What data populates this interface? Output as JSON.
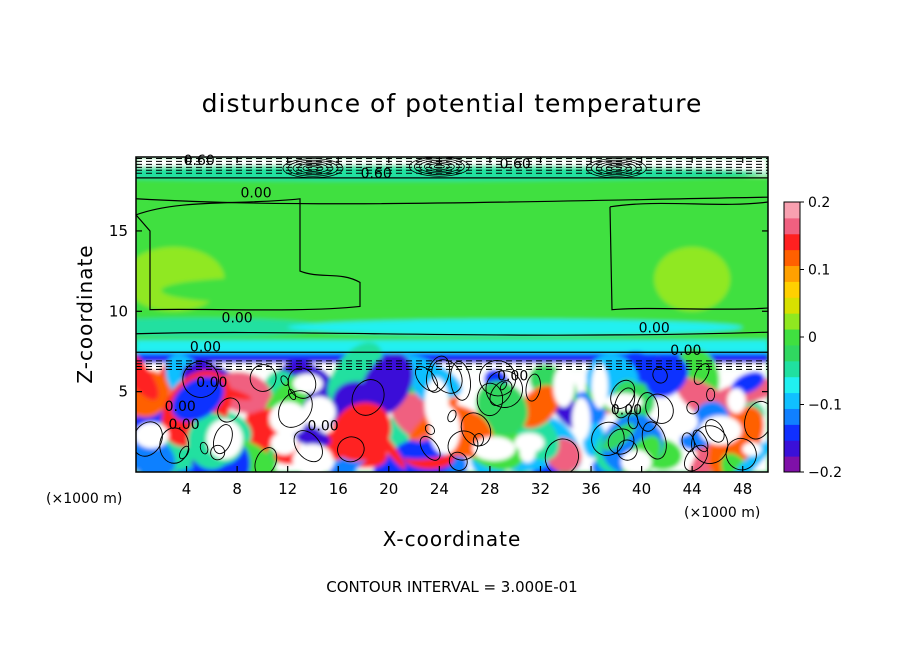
{
  "chart_data": {
    "type": "heatmap",
    "title": "disturbunce of potential temperature",
    "xlabel": "X-coordinate",
    "ylabel": "Z-coordinate",
    "x_unit_left": "(×1000 m)",
    "x_unit_right": "(×1000 m)",
    "footer": "CONTOUR INTERVAL = 3.000E-01",
    "xlim": [
      0,
      50
    ],
    "ylim": [
      0,
      19.6
    ],
    "x_ticks": [
      {
        "value": 4,
        "label": "4"
      },
      {
        "value": 8,
        "label": "8"
      },
      {
        "value": 12,
        "label": "12"
      },
      {
        "value": 16,
        "label": "16"
      },
      {
        "value": 20,
        "label": "20"
      },
      {
        "value": 24,
        "label": "24"
      },
      {
        "value": 28,
        "label": "28"
      },
      {
        "value": 32,
        "label": "32"
      },
      {
        "value": 36,
        "label": "36"
      },
      {
        "value": 40,
        "label": "40"
      },
      {
        "value": 44,
        "label": "44"
      },
      {
        "value": 48,
        "label": "48"
      }
    ],
    "y_ticks": [
      {
        "value": 5,
        "label": "5"
      },
      {
        "value": 10,
        "label": "10"
      },
      {
        "value": 15,
        "label": "15"
      }
    ],
    "colorbar": {
      "range": [
        -0.2,
        0.2
      ],
      "ticks": [
        {
          "value": 0.2,
          "label": "0.2"
        },
        {
          "value": 0.1,
          "label": "0.1"
        },
        {
          "value": 0,
          "label": "0"
        },
        {
          "value": -0.1,
          "label": "−0.1"
        },
        {
          "value": -0.2,
          "label": "−0.2"
        }
      ],
      "colors": [
        "#7f10a8",
        "#3a10d8",
        "#1030ff",
        "#1080ff",
        "#10c0ff",
        "#20f0f0",
        "#20e0a0",
        "#30d860",
        "#40e040",
        "#90e820",
        "#d8e000",
        "#ffd000",
        "#ffa000",
        "#ff6000",
        "#ff2020",
        "#f06080",
        "#f8a0b0"
      ]
    },
    "contour_labels": [
      {
        "x": 9.5,
        "z": 17.4,
        "label": "0.00"
      },
      {
        "x": 8.0,
        "z": 9.6,
        "label": "0.00"
      },
      {
        "x": 5.5,
        "z": 7.8,
        "label": "0.00"
      },
      {
        "x": 6.0,
        "z": 5.6,
        "label": "0.00"
      },
      {
        "x": 3.5,
        "z": 4.1,
        "label": "0.00"
      },
      {
        "x": 3.8,
        "z": 3.0,
        "label": "0.00"
      },
      {
        "x": 14.8,
        "z": 2.9,
        "label": "0.00"
      },
      {
        "x": 29.8,
        "z": 6.0,
        "label": "0.00"
      },
      {
        "x": 41.0,
        "z": 9.0,
        "label": "0.00"
      },
      {
        "x": 43.5,
        "z": 7.6,
        "label": "0.00"
      },
      {
        "x": 38.8,
        "z": 3.9,
        "label": "0.00"
      },
      {
        "x": 30.0,
        "z": 19.2,
        "label": "0.60"
      },
      {
        "x": 19.0,
        "z": 18.6,
        "label": "0.60"
      },
      {
        "x": 5.0,
        "z": 19.4,
        "label": "0.60"
      }
    ],
    "layers": [
      {
        "z0": 18.4,
        "z1": 19.6,
        "value": 0.0,
        "pattern": "dashed-stratification"
      },
      {
        "z0": 10.0,
        "z1": 18.4,
        "value": 0.0
      },
      {
        "z0": 8.2,
        "z1": 10.0,
        "value": 0.0
      },
      {
        "z0": 7.2,
        "z1": 8.2,
        "value": -0.08
      },
      {
        "z0": 6.3,
        "z1": 7.2,
        "value": 0.0,
        "pattern": "dashed-stratification"
      },
      {
        "z0": 0.0,
        "z1": 6.3,
        "value": 0.0,
        "pattern": "turbulent"
      }
    ]
  }
}
